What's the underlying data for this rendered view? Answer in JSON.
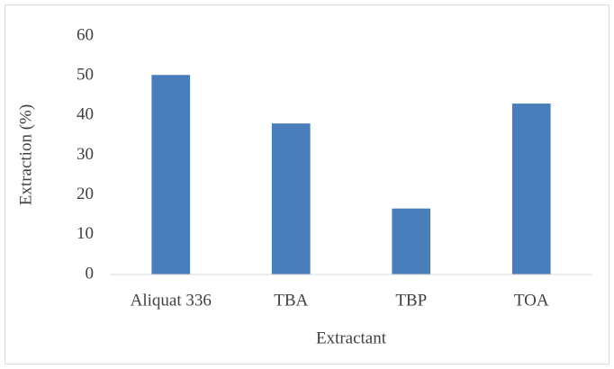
{
  "chart_data": {
    "type": "bar",
    "categories": [
      "Aliquat 336",
      "TBA",
      "TBP",
      "TOA"
    ],
    "values": [
      50.2,
      38,
      16.6,
      43
    ],
    "color": "#4a7ebb",
    "xlabel": "Extractant",
    "ylabel": "Extraction (%)",
    "ylim": [
      0,
      60
    ],
    "yticks": [
      0,
      10,
      20,
      30,
      40,
      50,
      60
    ],
    "grid": false
  }
}
